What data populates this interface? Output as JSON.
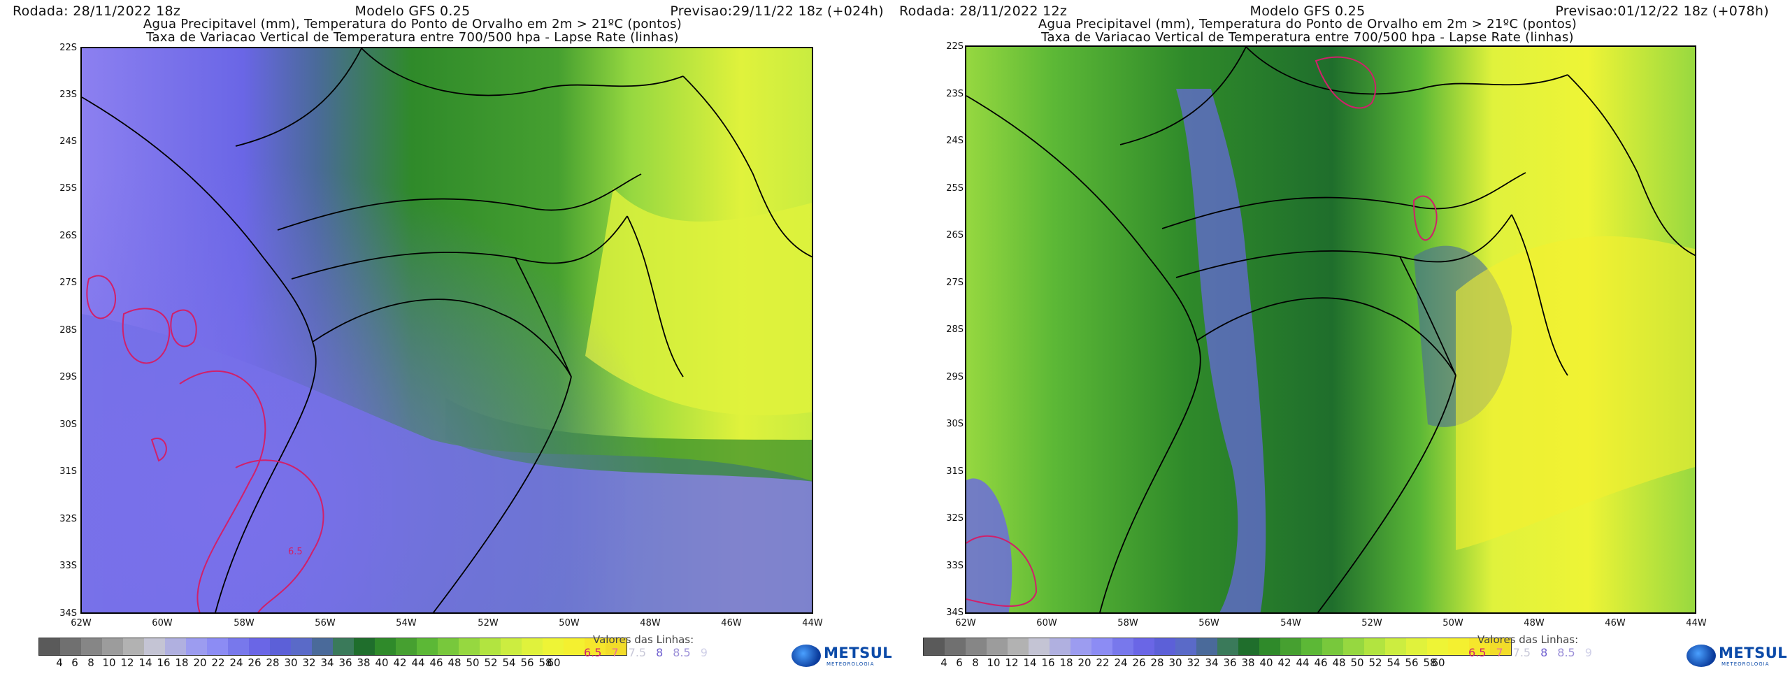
{
  "panels": [
    {
      "run": "Rodada: 28/11/2022 18z",
      "model": "Modelo GFS 0.25",
      "forecast": "Previsao:29/11/22 18z (+024h)",
      "subtitle1": "Agua Precipitavel (mm), Temperatura do Ponto de Orvalho em 2m > 21ºC (pontos)",
      "subtitle2": "Taxa de Variacao Vertical de Temperatura entre 700/500 hpa - Lapse Rate (linhas)",
      "lat_labels": [
        "22S",
        "23S",
        "24S",
        "25S",
        "26S",
        "27S",
        "28S",
        "29S",
        "30S",
        "31S",
        "32S",
        "33S",
        "34S"
      ],
      "lon_labels": [
        "62W",
        "60W",
        "58W",
        "56W",
        "54W",
        "52W",
        "50W",
        "48W",
        "46W",
        "44W"
      ],
      "map_annotation": "6.5"
    },
    {
      "run": "Rodada: 28/11/2022 12z",
      "model": "Modelo GFS 0.25",
      "forecast": "Previsao:01/12/22 18z (+078h)",
      "subtitle1": "Agua Precipitavel (mm), Temperatura do Ponto de Orvalho em 2m > 21ºC (pontos)",
      "subtitle2": "Taxa de Variacao Vertical de Temperatura entre 700/500 hpa - Lapse Rate (linhas)",
      "lat_labels": [
        "22S",
        "23S",
        "24S",
        "25S",
        "26S",
        "27S",
        "28S",
        "29S",
        "30S",
        "31S",
        "32S",
        "33S",
        "34S"
      ],
      "lon_labels": [
        "62W",
        "60W",
        "58W",
        "56W",
        "54W",
        "52W",
        "50W",
        "48W",
        "46W",
        "44W"
      ],
      "map_annotation": ""
    }
  ],
  "colorbar": {
    "labels": [
      "4",
      "6",
      "8",
      "10",
      "12",
      "14",
      "16",
      "18",
      "20",
      "22",
      "24",
      "26",
      "28",
      "30",
      "32",
      "34",
      "36",
      "38",
      "40",
      "42",
      "44",
      "46",
      "48",
      "50",
      "52",
      "54",
      "56",
      "58",
      "60"
    ],
    "colors": [
      "#5a5a5a",
      "#707070",
      "#868686",
      "#9c9c9c",
      "#b2b2b2",
      "#c4c4d4",
      "#b0b0e0",
      "#9c9cf0",
      "#8c8cf4",
      "#7878ec",
      "#6a66e6",
      "#5c60d8",
      "#5a6ac8",
      "#4a6a9a",
      "#3a7a5a",
      "#1f6e2c",
      "#2f8a2a",
      "#46a030",
      "#5cb836",
      "#78c83c",
      "#96d840",
      "#b2e440",
      "#cced40",
      "#e0f23c",
      "#eef436",
      "#f4f030",
      "#f6e62c",
      "#f2dc2a"
    ]
  },
  "legend": {
    "title": "Valores das Linhas:",
    "values": [
      "6.5",
      "7",
      "7.5",
      "8",
      "8.5",
      "9"
    ],
    "value_colors": [
      "#d0206a",
      "#e8709c",
      "#c8c8d8",
      "#7060d0",
      "#9c90d8",
      "#d0d0e8"
    ]
  },
  "logo": {
    "name": "METSUL",
    "tagline": "METEOROLOGIA"
  }
}
